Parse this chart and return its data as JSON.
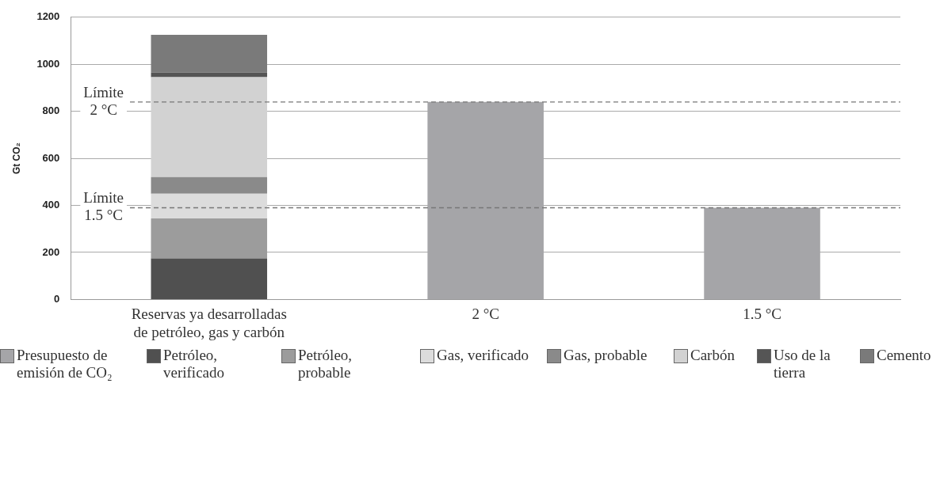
{
  "chart_data": {
    "type": "bar",
    "ylabel": "Gt CO₂",
    "categories": [
      "Reservas ya desarrolladas de petróleo, gas y carbón",
      "2 °C",
      "1.5 °C"
    ],
    "stacked": true,
    "series": [
      {
        "name": "Presupuesto de emisión de CO₂",
        "color": "#a5a5a8",
        "values": [
          null,
          840,
          390
        ]
      },
      {
        "name": "Petróleo, verificado",
        "color": "#505050",
        "values": [
          175,
          null,
          null
        ]
      },
      {
        "name": "Petróleo, probable",
        "color": "#9c9c9c",
        "values": [
          170,
          null,
          null
        ]
      },
      {
        "name": "Gas, verificado",
        "color": "#dcdcdc",
        "values": [
          105,
          null,
          null
        ]
      },
      {
        "name": "Gas, probable",
        "color": "#8a8a8a",
        "values": [
          70,
          null,
          null
        ]
      },
      {
        "name": "Carbón",
        "color": "#d2d2d2",
        "values": [
          425,
          null,
          null
        ]
      },
      {
        "name": "Uso de la tierra",
        "color": "#555555",
        "values": [
          20,
          null,
          null
        ]
      },
      {
        "name": "Cemento",
        "color": "#7a7a7a",
        "values": [
          160,
          null,
          null
        ]
      }
    ],
    "ylim": [
      0,
      1200
    ],
    "yticks": [
      0,
      200,
      400,
      600,
      800,
      1000,
      1200
    ],
    "ref_lines": [
      {
        "axis": "y",
        "value": 840,
        "label": "Límite 2 °C",
        "color": "#777777",
        "line_style": "dashed"
      },
      {
        "axis": "y",
        "value": 390,
        "label": "Límite 1.5 °C",
        "color": "#777777",
        "line_style": "dashed"
      }
    ],
    "grid": "y",
    "legend": "bottom"
  }
}
